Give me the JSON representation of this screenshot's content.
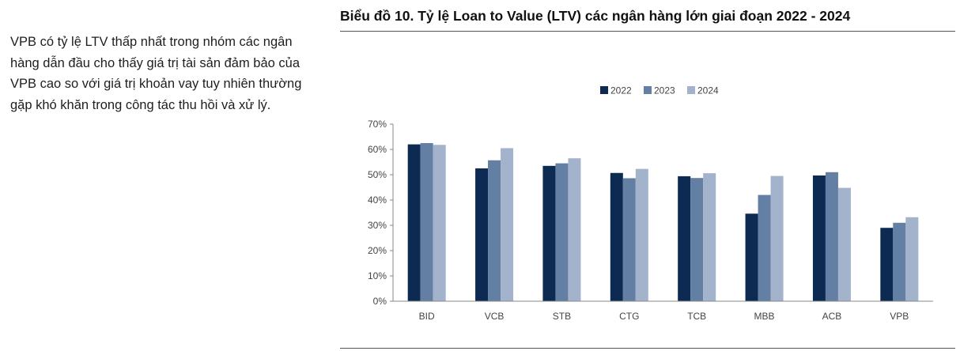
{
  "description_text": "VPB có tỷ lệ LTV thấp nhất trong nhóm các ngân hàng dẫn đầu cho thấy giá trị tài sản đảm bảo của VPB cao so với giá trị khoản vay tuy nhiên thường gặp khó khăn trong công tác thu hồi và xử lý.",
  "chart_data": {
    "type": "bar",
    "title": "Biểu đồ 10. Tỷ lệ Loan to Value (LTV) các ngân hàng lớn giai đoạn 2022 - 2024",
    "categories": [
      "BID",
      "VCB",
      "STB",
      "CTG",
      "TCB",
      "MBB",
      "ACB",
      "VPB"
    ],
    "series": [
      {
        "name": "2022",
        "color": "#0d2a52",
        "values": [
          62,
          52.5,
          53.5,
          50.7,
          49.4,
          34.6,
          49.7,
          29.0
        ]
      },
      {
        "name": "2023",
        "color": "#637fa3",
        "values": [
          62.5,
          55.7,
          54.5,
          48.6,
          48.7,
          42.0,
          51.0,
          31.0
        ]
      },
      {
        "name": "2024",
        "color": "#a4b3cc",
        "values": [
          61.8,
          60.5,
          56.5,
          52.3,
          50.6,
          49.5,
          44.8,
          33.2
        ]
      }
    ],
    "ylim": [
      0,
      70
    ],
    "yticks": [
      "0%",
      "10%",
      "20%",
      "30%",
      "40%",
      "50%",
      "60%",
      "70%"
    ],
    "xlabel": "",
    "ylabel": "",
    "legend_position": "top-center",
    "grid": false
  }
}
